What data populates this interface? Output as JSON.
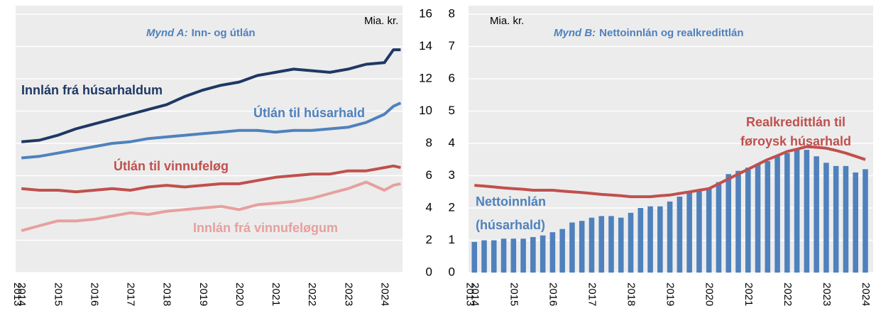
{
  "chart_data": [
    {
      "type": "line",
      "unit_label": "Mia. kr.",
      "annotation": {
        "prefix": "Mynd A:",
        "text": "Inn- og útlán"
      },
      "x": [
        2014,
        2014.5,
        2015,
        2015.5,
        2016,
        2016.5,
        2017,
        2017.5,
        2018,
        2018.5,
        2019,
        2019.5,
        2020,
        2020.5,
        2021,
        2021.5,
        2022,
        2022.5,
        2023,
        2023.5,
        2024,
        2024.25,
        2024.45
      ],
      "xlim": [
        2013.84,
        2024.5
      ],
      "xticks": [
        {
          "value": 2013.88,
          "label": "2013"
        },
        2014,
        2015,
        2016,
        2017,
        2018,
        2019,
        2020,
        2021,
        2022,
        2023,
        2024
      ],
      "ylim": [
        0,
        16
      ],
      "yticks": [
        0,
        2,
        4,
        6,
        8,
        10,
        12,
        14,
        16
      ],
      "grid": true,
      "series": [
        {
          "name": "Innlán frá húsarhaldum",
          "color": "#1f3864",
          "values": [
            8.1,
            8.2,
            8.5,
            8.9,
            9.2,
            9.5,
            9.8,
            10.1,
            10.4,
            10.9,
            11.3,
            11.6,
            11.8,
            12.2,
            12.4,
            12.6,
            12.5,
            12.4,
            12.6,
            12.9,
            13.0,
            13.8,
            13.8
          ]
        },
        {
          "name": "Útlán til húsarhald",
          "color": "#4f81bd",
          "values": [
            7.1,
            7.2,
            7.4,
            7.6,
            7.8,
            8.0,
            8.1,
            8.3,
            8.4,
            8.5,
            8.6,
            8.7,
            8.8,
            8.8,
            8.7,
            8.8,
            8.8,
            8.9,
            9.0,
            9.3,
            9.8,
            10.3,
            10.5
          ]
        },
        {
          "name": "Útlán til vinnufeløg",
          "color": "#c0504d",
          "values": [
            5.2,
            5.1,
            5.1,
            5.0,
            5.1,
            5.2,
            5.1,
            5.3,
            5.4,
            5.3,
            5.4,
            5.5,
            5.5,
            5.7,
            5.9,
            6.0,
            6.1,
            6.1,
            6.3,
            6.3,
            6.5,
            6.6,
            6.5
          ]
        },
        {
          "name": "Innlán frá vinnufeløgum",
          "color": "#e6a09e",
          "values": [
            2.6,
            2.9,
            3.2,
            3.2,
            3.3,
            3.5,
            3.7,
            3.6,
            3.8,
            3.9,
            4.0,
            4.1,
            3.9,
            4.2,
            4.3,
            4.4,
            4.6,
            4.9,
            5.2,
            5.6,
            5.1,
            5.4,
            5.5
          ]
        }
      ]
    },
    {
      "type": "combo",
      "unit_label": "Mia. kr.",
      "annotation": {
        "prefix": "Mynd B:",
        "text": "Nettoinnlán og realkredittlán"
      },
      "x": [
        2014,
        2014.25,
        2014.5,
        2014.75,
        2015,
        2015.25,
        2015.5,
        2015.75,
        2016,
        2016.25,
        2016.5,
        2016.75,
        2017,
        2017.25,
        2017.5,
        2017.75,
        2018,
        2018.25,
        2018.5,
        2018.75,
        2019,
        2019.25,
        2019.5,
        2019.75,
        2020,
        2020.25,
        2020.5,
        2020.75,
        2021,
        2021.25,
        2021.5,
        2021.75,
        2022,
        2022.25,
        2022.5,
        2022.75,
        2023,
        2023.25,
        2023.5,
        2023.75,
        2024
      ],
      "xlim": [
        2013.85,
        2024.2
      ],
      "xticks": [
        {
          "value": 2013.88,
          "label": "2013"
        },
        2014,
        2015,
        2016,
        2017,
        2018,
        2019,
        2020,
        2021,
        2022,
        2023,
        2024
      ],
      "ylim": [
        0,
        8
      ],
      "yticks": [
        0,
        1,
        2,
        3,
        4,
        5,
        6,
        7,
        8
      ],
      "grid": true,
      "series": [
        {
          "name": [
            "Nettoinnlán",
            "(húsarhald)"
          ],
          "kind": "bar",
          "color": "#4f81bd",
          "values": [
            0.95,
            1.0,
            1.0,
            1.05,
            1.05,
            1.05,
            1.1,
            1.15,
            1.25,
            1.35,
            1.55,
            1.6,
            1.7,
            1.75,
            1.75,
            1.7,
            1.85,
            2.0,
            2.05,
            2.05,
            2.2,
            2.35,
            2.5,
            2.55,
            2.6,
            2.8,
            3.05,
            3.15,
            3.25,
            3.35,
            3.45,
            3.6,
            3.7,
            3.8,
            3.8,
            3.6,
            3.4,
            3.3,
            3.3,
            3.1,
            3.2
          ]
        },
        {
          "name": [
            "Realkredittlán til",
            "føroysk húsarhald"
          ],
          "kind": "line",
          "color": "#c0504d",
          "values": [
            2.7,
            2.68,
            2.65,
            2.62,
            2.6,
            2.58,
            2.55,
            2.55,
            2.55,
            2.52,
            2.5,
            2.48,
            2.45,
            2.42,
            2.4,
            2.38,
            2.35,
            2.35,
            2.35,
            2.38,
            2.4,
            2.45,
            2.5,
            2.55,
            2.6,
            2.75,
            2.9,
            3.05,
            3.2,
            3.35,
            3.5,
            3.62,
            3.75,
            3.82,
            3.9,
            3.88,
            3.85,
            3.78,
            3.7,
            3.6,
            3.5
          ]
        }
      ]
    }
  ]
}
